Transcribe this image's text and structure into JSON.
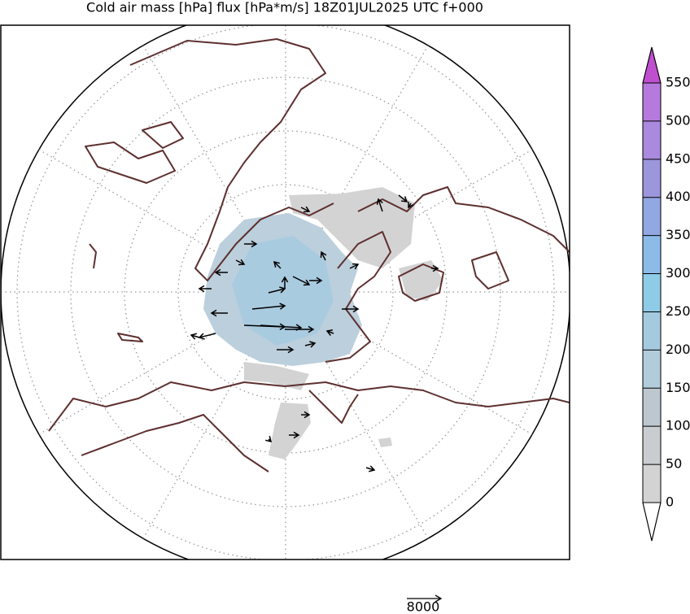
{
  "map": {
    "title": "Cold air mass [hPa] flux [hPa*m/s] 18Z01JUL2025 UTC f+000",
    "colorbar": {
      "ticks": [
        0,
        50,
        100,
        150,
        200,
        250,
        300,
        350,
        400,
        450,
        500,
        550
      ],
      "colors": [
        "#d3d3d3",
        "#c9cdd0",
        "#bdc7cf",
        "#b1ccda",
        "#a5cae0",
        "#8ecbe6",
        "#8cbbe8",
        "#92a8e2",
        "#9c96dc",
        "#a98ade",
        "#b67add"
      ],
      "over_color": "#c04fd0",
      "under_color": "#ffffff"
    },
    "quiver_key": {
      "label": "8000"
    }
  }
}
